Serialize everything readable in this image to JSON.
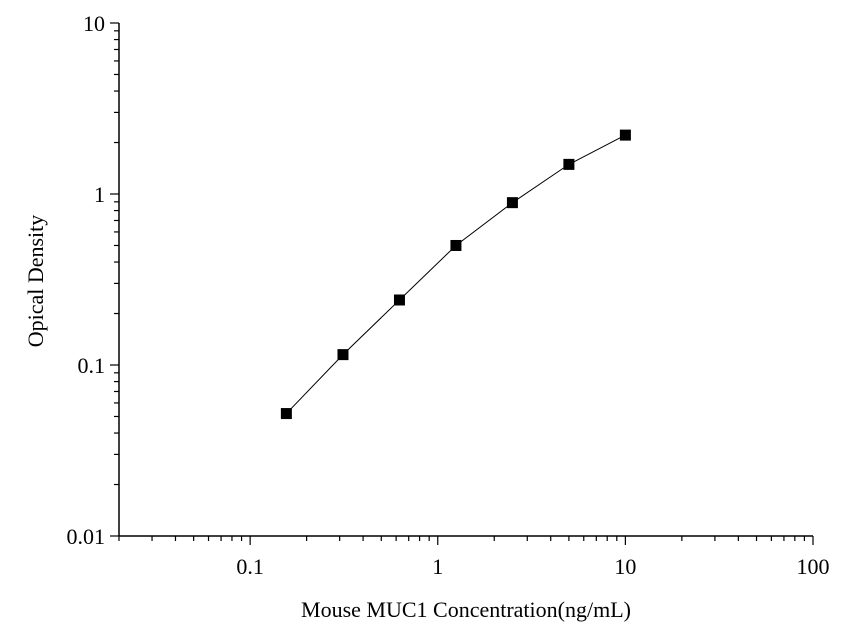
{
  "chart_data": {
    "type": "scatter",
    "xlabel": "Mouse MUC1 Concentration(ng/mL)",
    "ylabel": "Opical Density",
    "xscale": "log",
    "yscale": "log",
    "xlim": [
      0.02,
      100
    ],
    "ylim": [
      0.01,
      10
    ],
    "x_ticks": [
      {
        "value": 0.1,
        "label": "0.1"
      },
      {
        "value": 1,
        "label": "1"
      },
      {
        "value": 10,
        "label": "10"
      },
      {
        "value": 100,
        "label": "100"
      }
    ],
    "y_ticks": [
      {
        "value": 0.01,
        "label": "0.01"
      },
      {
        "value": 0.1,
        "label": "0.1"
      },
      {
        "value": 1,
        "label": "1"
      },
      {
        "value": 10,
        "label": "10"
      }
    ],
    "grid": false,
    "series": [
      {
        "marker": "square",
        "connected": true,
        "color": "#000000",
        "x": [
          0.156,
          0.3125,
          0.625,
          1.25,
          2.5,
          5,
          10
        ],
        "y": [
          0.052,
          0.115,
          0.24,
          0.5,
          0.89,
          1.49,
          2.21
        ]
      }
    ]
  }
}
